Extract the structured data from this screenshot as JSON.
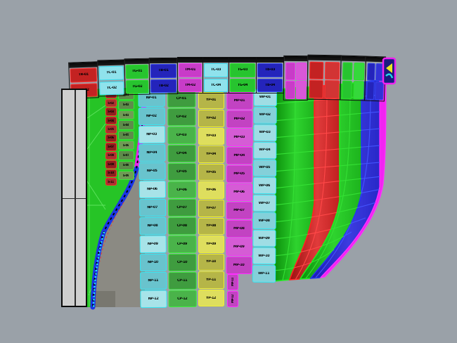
{
  "app": {
    "title": "3D hull plating viewport",
    "view": "shaded perspective"
  },
  "scene": {
    "background": "#9aa1a8",
    "shadow": "#8b8a83",
    "shadow_dark": "#78776f",
    "keel_fill": "#cfcfcf",
    "seam_magenta": "#ea24ea",
    "seam_blue": "#1a34e6",
    "edge_dotted_cyan": "#25ecf7",
    "edge_magenta": "#f224f2",
    "bow_green": "#26c426"
  },
  "palette": {
    "red": {
      "border": "#ff3030",
      "fills": [
        "#c32222",
        "#d23434"
      ]
    },
    "cyanTop": {
      "border": "#35dcee",
      "fills": [
        "#8fe2ec",
        "#5fc8da"
      ]
    },
    "green": {
      "border": "#28e028",
      "fills": [
        "#27c42f",
        "#35d83b"
      ]
    },
    "blue": {
      "border": "#3344ee",
      "fills": [
        "#2424bb",
        "#3232d6"
      ]
    },
    "magentaTop": {
      "border": "#ee3cee",
      "fills": [
        "#c83cc8",
        "#d858d8"
      ]
    },
    "redDark": {
      "border": "#ff2a2a",
      "fills": [
        "#8e1f1f",
        "#a93030"
      ]
    },
    "greenOlive": {
      "border": "#35e835",
      "fills": [
        "#5d8c4a",
        "#6f9c55"
      ]
    },
    "cyan": {
      "border": "#35e8f5",
      "fills": [
        "#69c3cd",
        "#a7e3e8"
      ]
    },
    "greenMid": {
      "border": "#3cf03c",
      "fills": [
        "#3f9c3f",
        "#4ab34a"
      ]
    },
    "yellow": {
      "border": "#f2f22e",
      "fills": [
        "#b5b548",
        "#dede5e"
      ]
    },
    "magenta": {
      "border": "#ff2eff",
      "fills": [
        "#c243c2",
        "#d55cd5"
      ]
    },
    "cyanPale": {
      "border": "#35e8f5",
      "fills": [
        "#9fdde4",
        "#84d0d9"
      ]
    }
  },
  "top_row": {
    "blocks": [
      {
        "theme": "red",
        "labels": [
          "TR-01",
          "TR-02"
        ]
      },
      {
        "theme": "cyanTop",
        "labels": [
          "TC-01",
          "TC-02"
        ]
      },
      {
        "theme": "green",
        "labels": [
          "TG-01",
          "TG-02"
        ]
      },
      {
        "theme": "blue",
        "labels": [
          "TB-01",
          "TB-02"
        ]
      },
      {
        "theme": "magentaTop",
        "labels": [
          "TM-01",
          "TM-02"
        ]
      },
      {
        "theme": "cyanTop",
        "labels": [
          "TC-03",
          "TC-04"
        ]
      },
      {
        "theme": "green",
        "labels": [
          "TG-03",
          "TG-04"
        ]
      },
      {
        "theme": "blue",
        "labels": [
          "TB-03",
          "TB-04"
        ]
      },
      {
        "theme": "magentaTop",
        "labels": []
      },
      {
        "theme": "red",
        "labels": []
      },
      {
        "theme": "green",
        "labels": []
      },
      {
        "theme": "blue",
        "labels": []
      }
    ]
  },
  "strips": {
    "red_narrow": {
      "theme": "redDark",
      "labels": [
        "S-01",
        "S-02",
        "S-03",
        "S-04",
        "S-05",
        "S-06",
        "S-07",
        "S-08",
        "S-09",
        "S-10",
        "S-11"
      ]
    },
    "green_narrow": {
      "theme": "greenOlive",
      "labels": [
        "G-01",
        "G-02",
        "G-03",
        "G-04",
        "G-05",
        "G-06",
        "G-07",
        "G-08",
        "G-09"
      ]
    },
    "cyan_main": {
      "theme": "cyan",
      "labels": [
        "NP-01",
        "NP-02",
        "NP-03",
        "NP-04",
        "NP-05",
        "NP-06",
        "NP-07",
        "NP-08",
        "NP-09",
        "NP-10",
        "NP-11",
        "NP-12"
      ]
    },
    "green_mid": {
      "theme": "greenMid",
      "labels": [
        "CP-01",
        "CP-02",
        "CP-03",
        "CP-04",
        "CP-05",
        "CP-06",
        "CP-07",
        "CP-08",
        "CP-09",
        "CP-10",
        "CP-11",
        "CP-12"
      ]
    },
    "yellow": {
      "theme": "yellow",
      "labels": [
        "YP-01",
        "YP-02",
        "YP-03",
        "YP-04",
        "YP-05",
        "YP-06",
        "YP-07",
        "YP-08",
        "YP-09",
        "YP-10",
        "YP-11",
        "YP-12"
      ]
    },
    "magenta": {
      "theme": "magenta",
      "labels": [
        "MP-01",
        "MP-02",
        "MP-03",
        "MP-04",
        "MP-05",
        "MP-06",
        "MP-07",
        "MP-08",
        "MP-09",
        "MP-10"
      ],
      "tab_labels": [
        "MP-11",
        "MP-12"
      ]
    },
    "cyan_right": {
      "theme": "cyanPale",
      "labels": [
        "WP-01",
        "WP-02",
        "WP-03",
        "WP-04",
        "WP-05",
        "WP-06",
        "WP-07",
        "WP-08",
        "WP-09",
        "WP-10",
        "WP-11"
      ]
    }
  }
}
